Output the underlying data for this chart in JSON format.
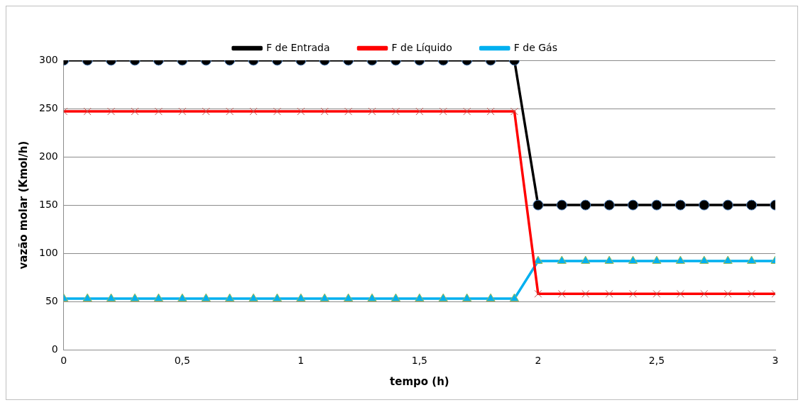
{
  "chart_data": {
    "type": "line",
    "xlabel": "tempo (h)",
    "ylabel": "vazão molar (Kmol/h)",
    "x": [
      0,
      0.1,
      0.2,
      0.3,
      0.4,
      0.5,
      0.6,
      0.7,
      0.8,
      0.9,
      1,
      1.1,
      1.2,
      1.3,
      1.4,
      1.5,
      1.6,
      1.7,
      1.8,
      1.9,
      2,
      2.1,
      2.2,
      2.3,
      2.4,
      2.5,
      2.6,
      2.7,
      2.8,
      2.9,
      3
    ],
    "series": [
      {
        "name": "F de Entrada",
        "color": "#000000",
        "marker": "circle",
        "values": [
          300,
          300,
          300,
          300,
          300,
          300,
          300,
          300,
          300,
          300,
          300,
          300,
          300,
          300,
          300,
          300,
          300,
          300,
          300,
          300,
          150,
          150,
          150,
          150,
          150,
          150,
          150,
          150,
          150,
          150,
          150
        ]
      },
      {
        "name": "F de Líquido",
        "color": "#ff0000",
        "marker": "cross",
        "values": [
          247,
          247,
          247,
          247,
          247,
          247,
          247,
          247,
          247,
          247,
          247,
          247,
          247,
          247,
          247,
          247,
          247,
          247,
          247,
          247,
          58,
          58,
          58,
          58,
          58,
          58,
          58,
          58,
          58,
          58,
          58
        ]
      },
      {
        "name": "F de Gás",
        "color": "#00b0f0",
        "marker": "triangle",
        "values": [
          53,
          53,
          53,
          53,
          53,
          53,
          53,
          53,
          53,
          53,
          53,
          53,
          53,
          53,
          53,
          53,
          53,
          53,
          53,
          53,
          92,
          92,
          92,
          92,
          92,
          92,
          92,
          92,
          92,
          92,
          92
        ]
      }
    ],
    "xlim": [
      0,
      3
    ],
    "xticks": [
      0,
      {
        "value": 0.5,
        "label": "0,5"
      },
      1,
      {
        "value": 1.5,
        "label": "1,5"
      },
      2,
      {
        "value": 2.5,
        "label": "2,5"
      },
      3
    ],
    "ylim": [
      0,
      300
    ],
    "yticks": [
      0,
      50,
      100,
      150,
      200,
      250,
      300
    ],
    "grid": "y",
    "legend": "top"
  }
}
